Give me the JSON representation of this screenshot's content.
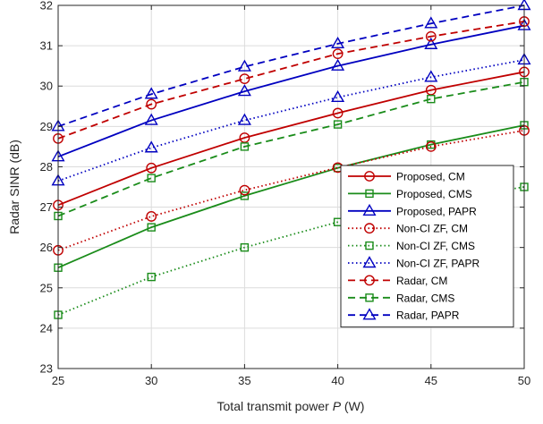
{
  "chart_data": {
    "type": "line",
    "xlabel_prefix": "Total transmit power ",
    "xlabel_symbol": "P",
    "xlabel_suffix": " (W)",
    "ylabel": "Radar SINR (dB)",
    "xlim": [
      25,
      50
    ],
    "ylim": [
      23,
      32
    ],
    "xticks": [
      25,
      30,
      35,
      40,
      45,
      50
    ],
    "yticks": [
      23,
      24,
      25,
      26,
      27,
      28,
      29,
      30,
      31,
      32
    ],
    "grid": true,
    "legend_position": "lower-right",
    "x": [
      25,
      30,
      35,
      40,
      45,
      50
    ],
    "series": [
      {
        "name": "Proposed, CM",
        "color": "#c00000",
        "dash": "solid",
        "marker": "circle",
        "values": [
          27.05,
          27.97,
          28.72,
          29.33,
          29.9,
          30.35
        ]
      },
      {
        "name": "Proposed, CMS",
        "color": "#1a8c1a",
        "dash": "solid",
        "marker": "square",
        "values": [
          25.5,
          26.5,
          27.28,
          27.97,
          28.55,
          29.03
        ]
      },
      {
        "name": "Proposed, PAPR",
        "color": "#0000c0",
        "dash": "solid",
        "marker": "triangle",
        "values": [
          28.25,
          29.15,
          29.87,
          30.5,
          31.03,
          31.5
        ]
      },
      {
        "name": "Non-CI ZF, CM",
        "color": "#c00000",
        "dash": "dotted",
        "marker": "circle",
        "values": [
          25.93,
          26.77,
          27.42,
          27.98,
          28.5,
          28.9
        ]
      },
      {
        "name": "Non-CI ZF, CMS",
        "color": "#1a8c1a",
        "dash": "dotted",
        "marker": "square",
        "values": [
          24.33,
          25.27,
          26.0,
          26.63,
          27.12,
          27.5
        ]
      },
      {
        "name": "Non-CI ZF, PAPR",
        "color": "#0000c0",
        "dash": "dotted",
        "marker": "triangle",
        "values": [
          27.65,
          28.47,
          29.15,
          29.72,
          30.22,
          30.65
        ]
      },
      {
        "name": "Radar, CM",
        "color": "#c00000",
        "dash": "dashed",
        "marker": "circle",
        "values": [
          28.7,
          29.55,
          30.18,
          30.8,
          31.23,
          31.6
        ]
      },
      {
        "name": "Radar, CMS",
        "color": "#1a8c1a",
        "dash": "dashed",
        "marker": "square",
        "values": [
          26.78,
          27.72,
          28.5,
          29.05,
          29.68,
          30.1
        ]
      },
      {
        "name": "Radar, PAPR",
        "color": "#0000c0",
        "dash": "dashed",
        "marker": "triangle",
        "values": [
          29.0,
          29.8,
          30.48,
          31.05,
          31.55,
          32.0
        ]
      }
    ]
  }
}
